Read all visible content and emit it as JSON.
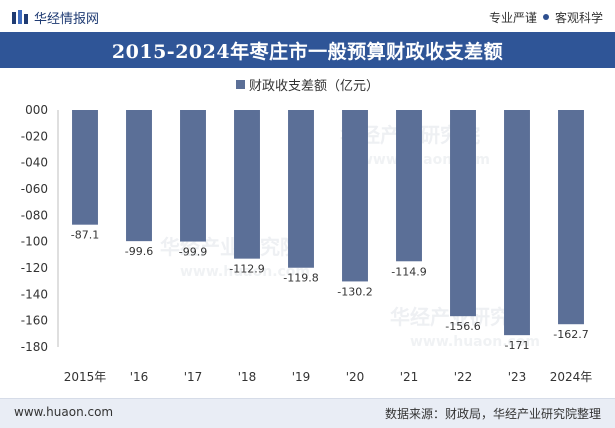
{
  "header": {
    "brand": "华经情报网",
    "tags": [
      "专业严谨",
      "客观科学"
    ]
  },
  "chart_data": {
    "type": "bar",
    "title": "2015-2024年枣庄市一般预算财政收支差额",
    "categories": [
      "2015年",
      "'16",
      "'17",
      "'18",
      "'19",
      "'20",
      "'21",
      "'22",
      "'23",
      "2024年"
    ],
    "series": [
      {
        "name": "财政收支差额（亿元）",
        "values": [
          -87.1,
          -99.6,
          -99.9,
          -112.9,
          -119.8,
          -130.2,
          -114.9,
          -156.6,
          -171,
          -162.7
        ],
        "labels": [
          "-87.1",
          "-99.6",
          "-99.9",
          "-112.9",
          "-119.8",
          "-130.2",
          "-114.9",
          "-156.6",
          "-171",
          "-162.7"
        ]
      }
    ],
    "ylim": [
      -180,
      0
    ],
    "yticks": [
      0,
      -20,
      -40,
      -60,
      -80,
      -100,
      -120,
      -140,
      -160,
      -180
    ],
    "ytick_labels": [
      "000",
      "-020",
      "-040",
      "-060",
      "-080",
      "-100",
      "-120",
      "-140",
      "-160",
      "-180"
    ],
    "grid": false,
    "legend": "top",
    "bar_color": "#5b6f97"
  },
  "watermarks": [
    "华经产业研究院",
    "www.huaon.com"
  ],
  "footer": {
    "website": "www.huaon.com",
    "source": "数据来源：财政局，华经产业研究院整理"
  }
}
